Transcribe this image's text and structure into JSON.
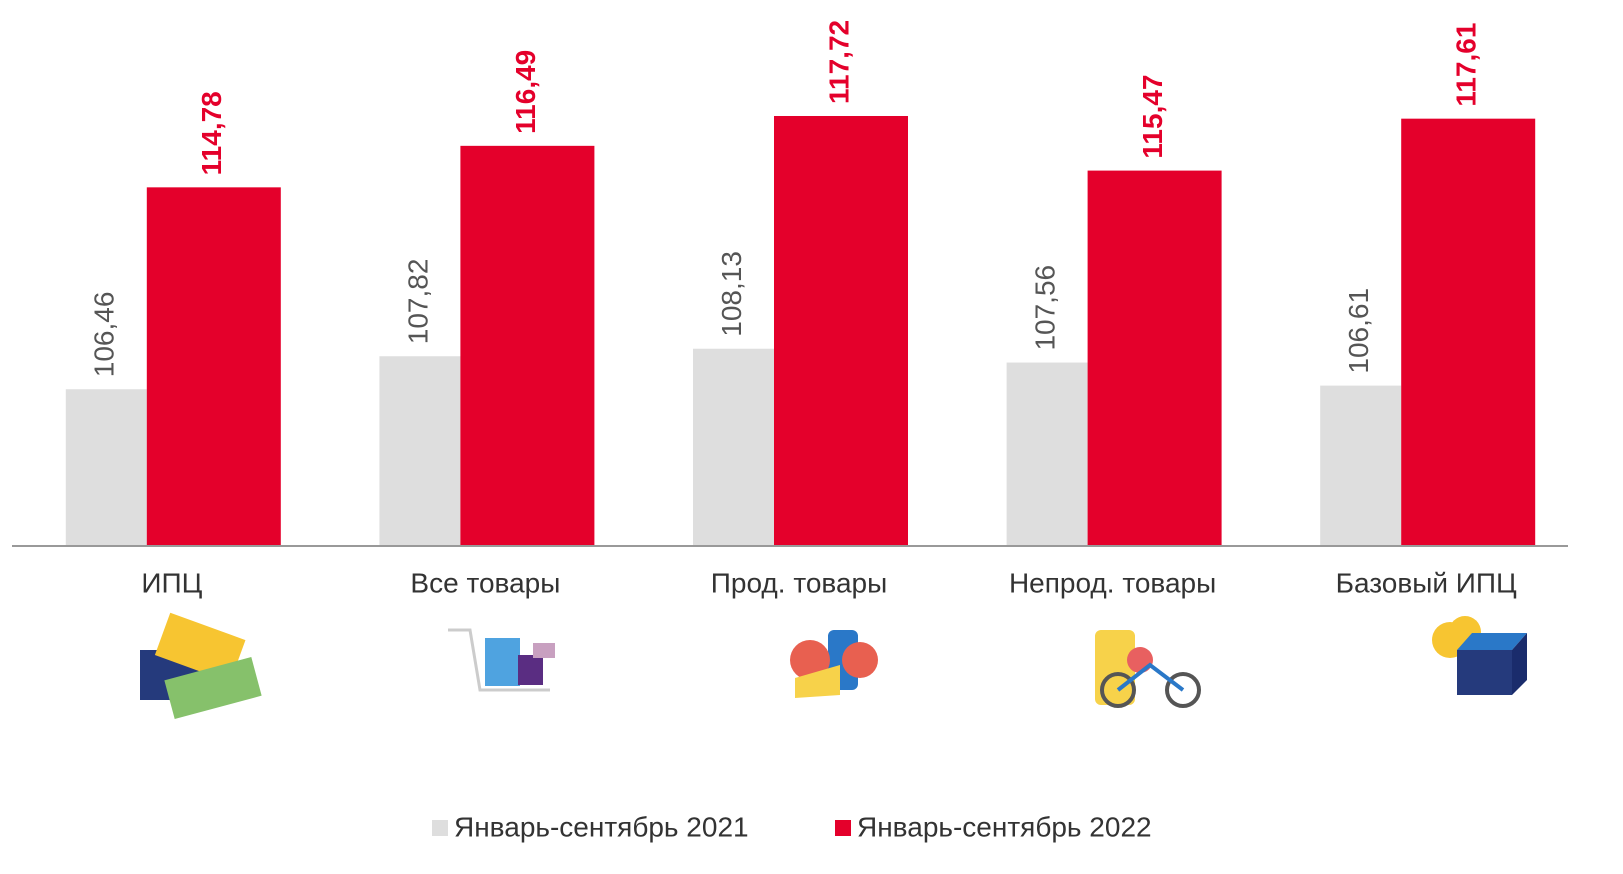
{
  "chart_data": {
    "type": "bar",
    "categories": [
      "ИПЦ",
      "Все товары",
      "Прод. товары",
      "Непрод. товары",
      "Базовый ИПЦ"
    ],
    "series": [
      {
        "name": "Январь-сентябрь 2021",
        "color": "#dedede",
        "values": [
          106.46,
          107.82,
          108.13,
          107.56,
          106.61
        ],
        "value_labels": [
          "106,46",
          "107,82",
          "108,13",
          "107,56",
          "106,61"
        ]
      },
      {
        "name": "Январь-сентябрь 2022",
        "color": "#e4002b",
        "values": [
          114.78,
          116.49,
          117.72,
          115.47,
          117.61
        ],
        "value_labels": [
          "114,78",
          "116,49",
          "117,72",
          "115,47",
          "117,61"
        ]
      }
    ],
    "ylim": [
      100,
      122.5
    ],
    "grid": false,
    "legend": "bottom"
  }
}
